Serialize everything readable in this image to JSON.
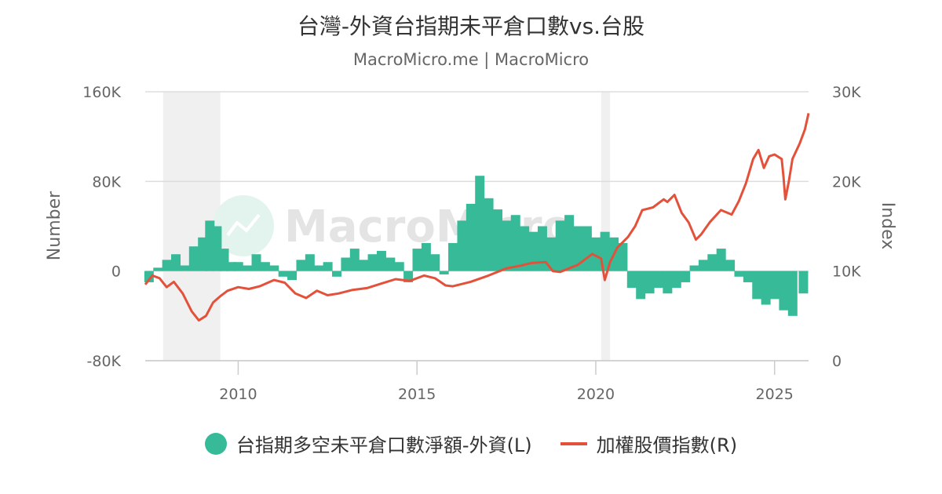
{
  "header": {
    "title": "台灣-外資台指期未平倉口數vs.台股",
    "subtitle": "MacroMicro.me | MacroMicro"
  },
  "watermark": {
    "text": "MacroMicro"
  },
  "legend": {
    "items": [
      {
        "label": "台指期多空未平倉口數淨額-外資(L)",
        "color": "#36ba98",
        "kind": "column"
      },
      {
        "label": "加權股價指數(R)",
        "color": "#e4513a",
        "kind": "line"
      }
    ]
  },
  "chart_data": {
    "type": "column+line",
    "title": "台灣-外資台指期未平倉口數vs.台股",
    "x": {
      "min": 2007.4,
      "max": 2025.95,
      "ticks": [
        2010,
        2015,
        2020,
        2025
      ],
      "tick_labels": [
        "2010",
        "2015",
        "2020",
        "2025"
      ]
    },
    "y_left": {
      "label": "Number",
      "min": -80000,
      "max": 160000,
      "ticks": [
        -80000,
        0,
        80000,
        160000
      ],
      "tick_labels": [
        "-80K",
        "0",
        "80K",
        "160K"
      ]
    },
    "y_right": {
      "label": "Index",
      "min": 0,
      "max": 30000,
      "ticks": [
        0,
        10000,
        20000,
        30000
      ],
      "tick_labels": [
        "0",
        "10K",
        "20K",
        "30K"
      ]
    },
    "recessions": [
      [
        2007.9,
        2009.5
      ],
      [
        2020.15,
        2020.4
      ]
    ],
    "series": [
      {
        "name": "台指期多空未平倉口數淨額-外資(L)",
        "type": "column",
        "color": "#36ba98",
        "x": [
          2007.5,
          2007.75,
          2008.0,
          2008.25,
          2008.5,
          2008.75,
          2009.0,
          2009.2,
          2009.4,
          2009.6,
          2009.8,
          2010.0,
          2010.25,
          2010.5,
          2010.75,
          2011.0,
          2011.25,
          2011.5,
          2011.75,
          2012.0,
          2012.25,
          2012.5,
          2012.75,
          2013.0,
          2013.25,
          2013.5,
          2013.75,
          2014.0,
          2014.25,
          2014.5,
          2014.75,
          2015.0,
          2015.25,
          2015.5,
          2015.75,
          2016.0,
          2016.25,
          2016.5,
          2016.75,
          2017.0,
          2017.25,
          2017.5,
          2017.75,
          2018.0,
          2018.25,
          2018.5,
          2018.75,
          2019.0,
          2019.25,
          2019.5,
          2019.75,
          2020.0,
          2020.25,
          2020.5,
          2020.75,
          2021.0,
          2021.25,
          2021.5,
          2021.75,
          2022.0,
          2022.25,
          2022.5,
          2022.75,
          2023.0,
          2023.25,
          2023.5,
          2023.75,
          2024.0,
          2024.25,
          2024.5,
          2024.75,
          2025.0,
          2025.25,
          2025.5,
          2025.8
        ],
        "values": [
          -10000,
          3000,
          10000,
          15000,
          5000,
          22000,
          30000,
          45000,
          40000,
          20000,
          8000,
          8000,
          5000,
          15000,
          8000,
          5000,
          -5000,
          -8000,
          10000,
          15000,
          5000,
          8000,
          -5000,
          12000,
          20000,
          10000,
          15000,
          18000,
          12000,
          8000,
          -10000,
          20000,
          25000,
          15000,
          -3000,
          25000,
          45000,
          60000,
          85000,
          65000,
          55000,
          45000,
          50000,
          40000,
          35000,
          40000,
          30000,
          45000,
          50000,
          40000,
          40000,
          30000,
          35000,
          30000,
          25000,
          -15000,
          -25000,
          -20000,
          -15000,
          -20000,
          -15000,
          -10000,
          5000,
          10000,
          15000,
          20000,
          10000,
          -5000,
          -10000,
          -25000,
          -30000,
          -25000,
          -35000,
          -40000,
          -20000
        ]
      },
      {
        "name": "加權股價指數(R)",
        "type": "line",
        "color": "#e4513a",
        "x": [
          2007.4,
          2007.6,
          2007.8,
          2008.0,
          2008.2,
          2008.45,
          2008.7,
          2008.9,
          2009.1,
          2009.3,
          2009.5,
          2009.7,
          2010.0,
          2010.3,
          2010.6,
          2011.0,
          2011.3,
          2011.6,
          2011.9,
          2012.2,
          2012.5,
          2012.8,
          2013.2,
          2013.6,
          2014.0,
          2014.4,
          2014.8,
          2015.2,
          2015.5,
          2015.8,
          2016.0,
          2016.5,
          2017.0,
          2017.5,
          2017.9,
          2018.2,
          2018.6,
          2018.8,
          2019.0,
          2019.5,
          2019.9,
          2020.15,
          2020.25,
          2020.4,
          2020.6,
          2020.9,
          2021.1,
          2021.3,
          2021.6,
          2021.9,
          2022.0,
          2022.2,
          2022.4,
          2022.6,
          2022.8,
          2022.95,
          2023.2,
          2023.5,
          2023.8,
          2024.0,
          2024.2,
          2024.4,
          2024.55,
          2024.7,
          2024.85,
          2025.0,
          2025.2,
          2025.25,
          2025.3,
          2025.4,
          2025.5,
          2025.7,
          2025.85,
          2025.95
        ],
        "values": [
          8500,
          9500,
          9200,
          8200,
          8800,
          7500,
          5500,
          4500,
          5000,
          6500,
          7200,
          7800,
          8200,
          8000,
          8300,
          9000,
          8700,
          7500,
          7000,
          7800,
          7300,
          7500,
          7900,
          8100,
          8600,
          9100,
          8900,
          9500,
          9200,
          8400,
          8300,
          8800,
          9500,
          10300,
          10600,
          10900,
          11000,
          10000,
          9900,
          10700,
          11900,
          11400,
          9000,
          11000,
          12600,
          13800,
          15000,
          16800,
          17100,
          18000,
          17700,
          18500,
          16500,
          15400,
          13500,
          14100,
          15500,
          16800,
          16300,
          17800,
          19800,
          22500,
          23500,
          21500,
          22800,
          23000,
          22500,
          20500,
          18000,
          20000,
          22500,
          24200,
          25800,
          27600
        ]
      }
    ]
  }
}
